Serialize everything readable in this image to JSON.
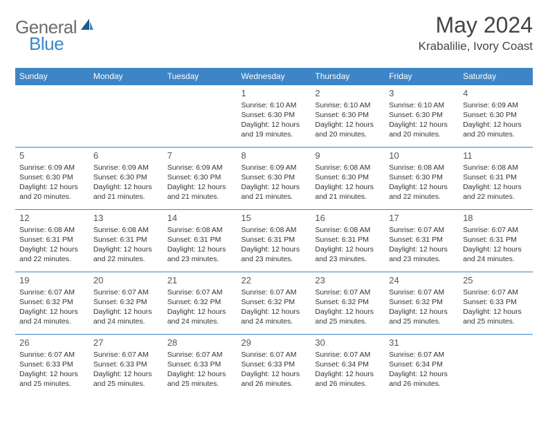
{
  "logo": {
    "general": "General",
    "blue": "Blue"
  },
  "header": {
    "month_title": "May 2024",
    "location": "Krabalilie, Ivory Coast"
  },
  "colors": {
    "header_bg": "#3d85c6",
    "header_text": "#ffffff",
    "border": "#3d85c6",
    "logo_gray": "#6b6b6b",
    "logo_blue": "#3d85c6"
  },
  "day_names": [
    "Sunday",
    "Monday",
    "Tuesday",
    "Wednesday",
    "Thursday",
    "Friday",
    "Saturday"
  ],
  "weeks": [
    [
      null,
      null,
      null,
      {
        "n": "1",
        "sr": "Sunrise: 6:10 AM",
        "ss": "Sunset: 6:30 PM",
        "dl": "Daylight: 12 hours and 19 minutes."
      },
      {
        "n": "2",
        "sr": "Sunrise: 6:10 AM",
        "ss": "Sunset: 6:30 PM",
        "dl": "Daylight: 12 hours and 20 minutes."
      },
      {
        "n": "3",
        "sr": "Sunrise: 6:10 AM",
        "ss": "Sunset: 6:30 PM",
        "dl": "Daylight: 12 hours and 20 minutes."
      },
      {
        "n": "4",
        "sr": "Sunrise: 6:09 AM",
        "ss": "Sunset: 6:30 PM",
        "dl": "Daylight: 12 hours and 20 minutes."
      }
    ],
    [
      {
        "n": "5",
        "sr": "Sunrise: 6:09 AM",
        "ss": "Sunset: 6:30 PM",
        "dl": "Daylight: 12 hours and 20 minutes."
      },
      {
        "n": "6",
        "sr": "Sunrise: 6:09 AM",
        "ss": "Sunset: 6:30 PM",
        "dl": "Daylight: 12 hours and 21 minutes."
      },
      {
        "n": "7",
        "sr": "Sunrise: 6:09 AM",
        "ss": "Sunset: 6:30 PM",
        "dl": "Daylight: 12 hours and 21 minutes."
      },
      {
        "n": "8",
        "sr": "Sunrise: 6:09 AM",
        "ss": "Sunset: 6:30 PM",
        "dl": "Daylight: 12 hours and 21 minutes."
      },
      {
        "n": "9",
        "sr": "Sunrise: 6:08 AM",
        "ss": "Sunset: 6:30 PM",
        "dl": "Daylight: 12 hours and 21 minutes."
      },
      {
        "n": "10",
        "sr": "Sunrise: 6:08 AM",
        "ss": "Sunset: 6:30 PM",
        "dl": "Daylight: 12 hours and 22 minutes."
      },
      {
        "n": "11",
        "sr": "Sunrise: 6:08 AM",
        "ss": "Sunset: 6:31 PM",
        "dl": "Daylight: 12 hours and 22 minutes."
      }
    ],
    [
      {
        "n": "12",
        "sr": "Sunrise: 6:08 AM",
        "ss": "Sunset: 6:31 PM",
        "dl": "Daylight: 12 hours and 22 minutes."
      },
      {
        "n": "13",
        "sr": "Sunrise: 6:08 AM",
        "ss": "Sunset: 6:31 PM",
        "dl": "Daylight: 12 hours and 22 minutes."
      },
      {
        "n": "14",
        "sr": "Sunrise: 6:08 AM",
        "ss": "Sunset: 6:31 PM",
        "dl": "Daylight: 12 hours and 23 minutes."
      },
      {
        "n": "15",
        "sr": "Sunrise: 6:08 AM",
        "ss": "Sunset: 6:31 PM",
        "dl": "Daylight: 12 hours and 23 minutes."
      },
      {
        "n": "16",
        "sr": "Sunrise: 6:08 AM",
        "ss": "Sunset: 6:31 PM",
        "dl": "Daylight: 12 hours and 23 minutes."
      },
      {
        "n": "17",
        "sr": "Sunrise: 6:07 AM",
        "ss": "Sunset: 6:31 PM",
        "dl": "Daylight: 12 hours and 23 minutes."
      },
      {
        "n": "18",
        "sr": "Sunrise: 6:07 AM",
        "ss": "Sunset: 6:31 PM",
        "dl": "Daylight: 12 hours and 24 minutes."
      }
    ],
    [
      {
        "n": "19",
        "sr": "Sunrise: 6:07 AM",
        "ss": "Sunset: 6:32 PM",
        "dl": "Daylight: 12 hours and 24 minutes."
      },
      {
        "n": "20",
        "sr": "Sunrise: 6:07 AM",
        "ss": "Sunset: 6:32 PM",
        "dl": "Daylight: 12 hours and 24 minutes."
      },
      {
        "n": "21",
        "sr": "Sunrise: 6:07 AM",
        "ss": "Sunset: 6:32 PM",
        "dl": "Daylight: 12 hours and 24 minutes."
      },
      {
        "n": "22",
        "sr": "Sunrise: 6:07 AM",
        "ss": "Sunset: 6:32 PM",
        "dl": "Daylight: 12 hours and 24 minutes."
      },
      {
        "n": "23",
        "sr": "Sunrise: 6:07 AM",
        "ss": "Sunset: 6:32 PM",
        "dl": "Daylight: 12 hours and 25 minutes."
      },
      {
        "n": "24",
        "sr": "Sunrise: 6:07 AM",
        "ss": "Sunset: 6:32 PM",
        "dl": "Daylight: 12 hours and 25 minutes."
      },
      {
        "n": "25",
        "sr": "Sunrise: 6:07 AM",
        "ss": "Sunset: 6:33 PM",
        "dl": "Daylight: 12 hours and 25 minutes."
      }
    ],
    [
      {
        "n": "26",
        "sr": "Sunrise: 6:07 AM",
        "ss": "Sunset: 6:33 PM",
        "dl": "Daylight: 12 hours and 25 minutes."
      },
      {
        "n": "27",
        "sr": "Sunrise: 6:07 AM",
        "ss": "Sunset: 6:33 PM",
        "dl": "Daylight: 12 hours and 25 minutes."
      },
      {
        "n": "28",
        "sr": "Sunrise: 6:07 AM",
        "ss": "Sunset: 6:33 PM",
        "dl": "Daylight: 12 hours and 25 minutes."
      },
      {
        "n": "29",
        "sr": "Sunrise: 6:07 AM",
        "ss": "Sunset: 6:33 PM",
        "dl": "Daylight: 12 hours and 26 minutes."
      },
      {
        "n": "30",
        "sr": "Sunrise: 6:07 AM",
        "ss": "Sunset: 6:34 PM",
        "dl": "Daylight: 12 hours and 26 minutes."
      },
      {
        "n": "31",
        "sr": "Sunrise: 6:07 AM",
        "ss": "Sunset: 6:34 PM",
        "dl": "Daylight: 12 hours and 26 minutes."
      },
      null
    ]
  ]
}
